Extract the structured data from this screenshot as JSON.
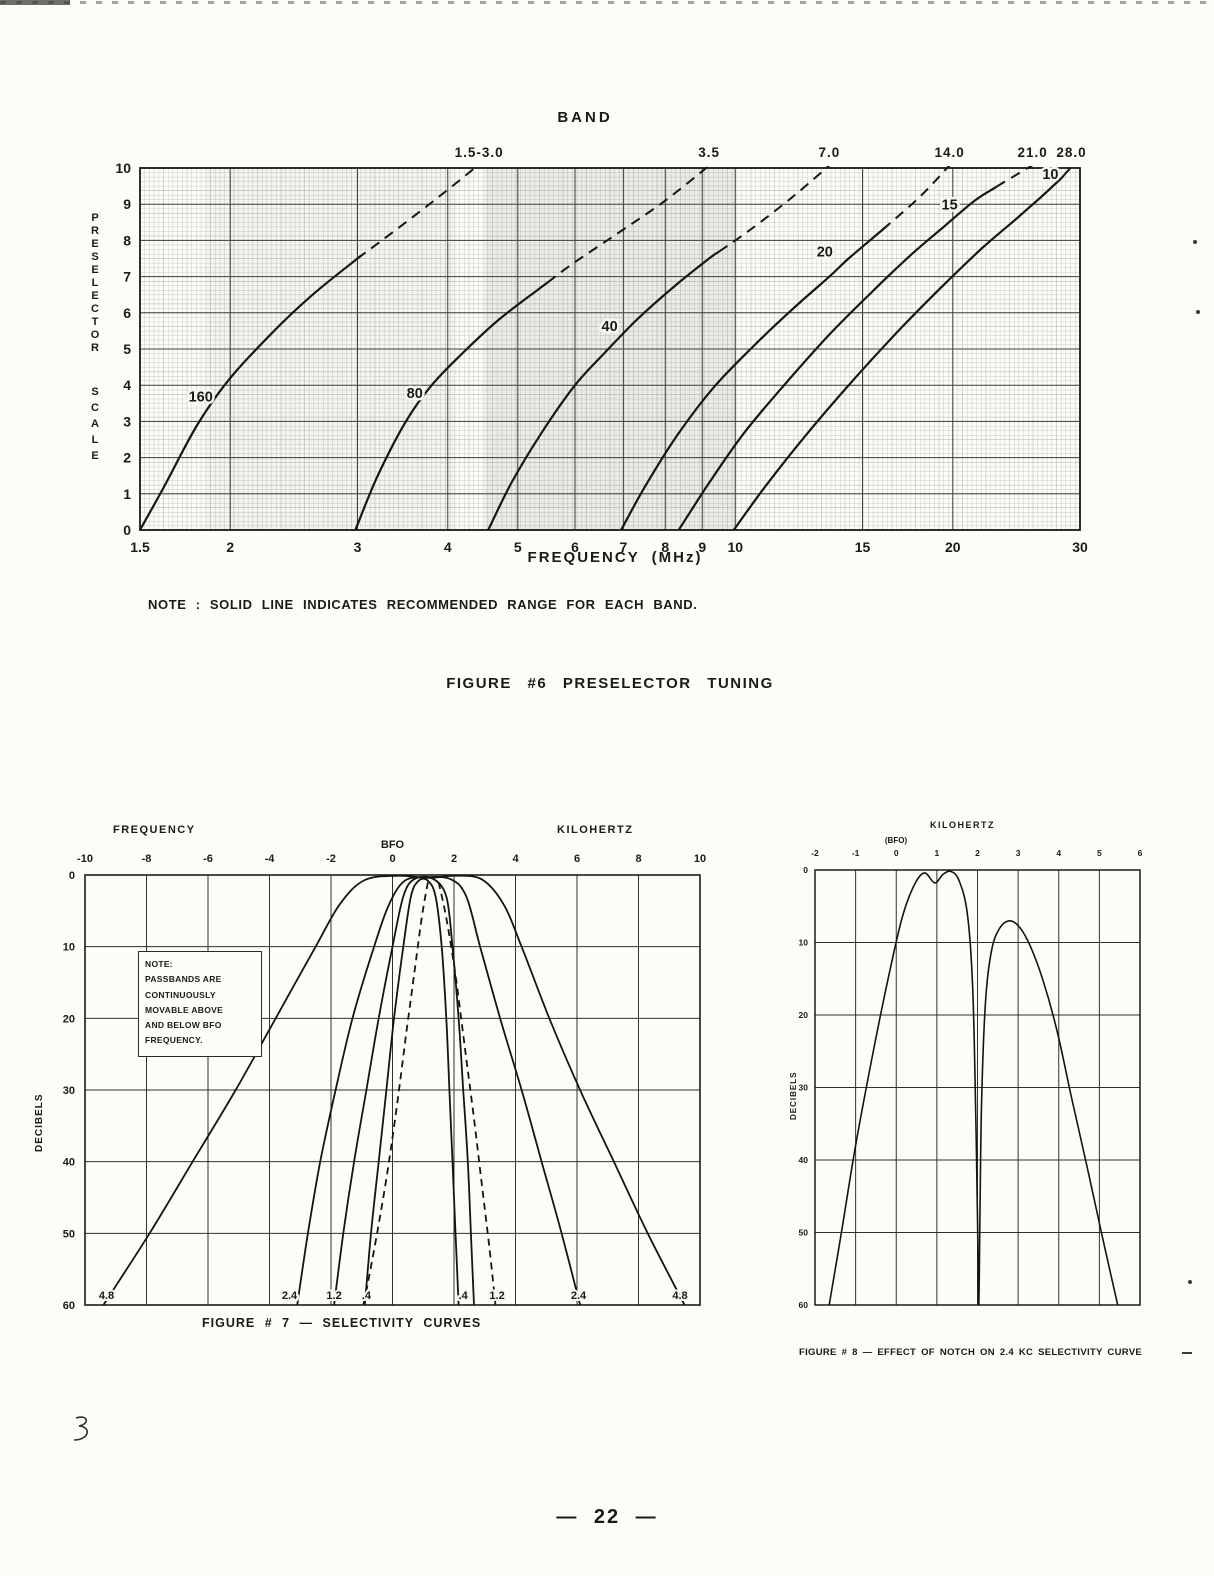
{
  "page": {
    "footer": "— 22 —"
  },
  "chart_data": [
    {
      "id": "figure-6-preselector-tuning",
      "type": "line",
      "caption": "FIGURE #6 PRESELECTOR TUNING",
      "top_axis_title": "BAND",
      "xlabel": "FREQUENCY (MHz)",
      "ylabel": "PRESELECTOR SCALE",
      "ylabel_words": [
        "PRESELECTOR",
        "SCALE"
      ],
      "note": "NOTE : SOLID LINE INDICATES RECOMMENDED RANGE FOR EACH BAND.",
      "x_scale": "log",
      "xlim": [
        1.5,
        30
      ],
      "ylim": [
        0,
        10
      ],
      "x_ticks": [
        1.5,
        2,
        3,
        4,
        5,
        6,
        7,
        8,
        9,
        10,
        15,
        20,
        30
      ],
      "x_tick_labels": [
        "1.5",
        "2",
        "3",
        "4",
        "5",
        "6",
        "7",
        "8",
        "9",
        "10",
        "15",
        "20",
        "30"
      ],
      "y_ticks": [
        0,
        1,
        2,
        3,
        4,
        5,
        6,
        7,
        8,
        9,
        10
      ],
      "grid": "fine log graph paper",
      "top_labels": [
        {
          "text": "1.5-3.0",
          "freq": 4.42
        },
        {
          "text": "3.5",
          "freq": 9.2
        },
        {
          "text": "7.0",
          "freq": 13.5
        },
        {
          "text": "14.0",
          "freq": 19.8
        },
        {
          "text": "21.0",
          "freq": 25.8
        },
        {
          "text": "28.0",
          "freq": 29.2
        }
      ],
      "series": [
        {
          "name": "160",
          "band": "1.5-3.0",
          "dash_from": 3.0,
          "label_pos": [
            1.82,
            3.55
          ],
          "points": [
            [
              1.5,
              0
            ],
            [
              1.62,
              1.2
            ],
            [
              1.8,
              2.9
            ],
            [
              2.0,
              4.2
            ],
            [
              2.3,
              5.5
            ],
            [
              2.6,
              6.5
            ],
            [
              3.0,
              7.5
            ],
            [
              3.5,
              8.5
            ],
            [
              4.0,
              9.4
            ],
            [
              4.42,
              10.1
            ]
          ]
        },
        {
          "name": "80",
          "band": "3.5",
          "dash_from": 5.5,
          "label_pos": [
            3.6,
            3.65
          ],
          "points": [
            [
              2.98,
              0
            ],
            [
              3.2,
              1.5
            ],
            [
              3.5,
              3.0
            ],
            [
              3.8,
              4.0
            ],
            [
              4.2,
              4.9
            ],
            [
              4.7,
              5.8
            ],
            [
              5.3,
              6.6
            ],
            [
              6.0,
              7.4
            ],
            [
              7.0,
              8.3
            ],
            [
              8.0,
              9.1
            ],
            [
              9.25,
              10.1
            ]
          ]
        },
        {
          "name": "40",
          "band": "7.0",
          "dash_from": 9.5,
          "label_pos": [
            6.7,
            5.5
          ],
          "points": [
            [
              4.55,
              0
            ],
            [
              4.9,
              1.3
            ],
            [
              5.4,
              2.7
            ],
            [
              6.0,
              4.0
            ],
            [
              6.6,
              4.9
            ],
            [
              7.3,
              5.8
            ],
            [
              8.2,
              6.7
            ],
            [
              9.2,
              7.5
            ],
            [
              10.5,
              8.3
            ],
            [
              12.0,
              9.2
            ],
            [
              13.55,
              10.1
            ]
          ]
        },
        {
          "name": "20",
          "band": "14.0",
          "dash_from": 16,
          "label_pos": [
            13.3,
            7.55
          ],
          "points": [
            [
              6.95,
              0
            ],
            [
              7.5,
              1.2
            ],
            [
              8.3,
              2.6
            ],
            [
              9.3,
              3.9
            ],
            [
              10.5,
              5.0
            ],
            [
              12.0,
              6.1
            ],
            [
              13.5,
              7.0
            ],
            [
              14.35,
              7.5
            ],
            [
              16.0,
              8.3
            ],
            [
              18.0,
              9.2
            ],
            [
              19.85,
              10.1
            ]
          ]
        },
        {
          "name": "15",
          "band": "21.0",
          "dash_from": 23,
          "label_pos": [
            19.8,
            8.85
          ],
          "points": [
            [
              8.35,
              0
            ],
            [
              9.2,
              1.3
            ],
            [
              10.3,
              2.7
            ],
            [
              11.8,
              4.1
            ],
            [
              13.5,
              5.4
            ],
            [
              15.5,
              6.6
            ],
            [
              17.5,
              7.6
            ],
            [
              19.5,
              8.4
            ],
            [
              21.45,
              9.1
            ],
            [
              23.5,
              9.6
            ],
            [
              25.9,
              10.1
            ]
          ]
        },
        {
          "name": "10",
          "band": "28.0",
          "dash_from": 28.5,
          "label_pos": [
            27.3,
            9.7
          ],
          "points": [
            [
              9.95,
              0
            ],
            [
              11.0,
              1.2
            ],
            [
              12.5,
              2.6
            ],
            [
              14.5,
              4.1
            ],
            [
              17.0,
              5.6
            ],
            [
              19.5,
              6.8
            ],
            [
              22.0,
              7.8
            ],
            [
              24.5,
              8.6
            ],
            [
              26.5,
              9.2
            ],
            [
              28.2,
              9.7
            ],
            [
              29.4,
              10.1
            ]
          ]
        }
      ]
    },
    {
      "id": "figure-7-selectivity-curves",
      "type": "line",
      "caption": "FIGURE # 7 — SELECTIVITY CURVES",
      "top_left_label": "FREQUENCY",
      "top_right_label": "KILOHERTZ",
      "bfo_label": "BFO",
      "ylabel": "DECIBELS",
      "xlim": [
        -10,
        10
      ],
      "ylim": [
        0,
        60
      ],
      "x_ticks": [
        -10,
        -8,
        -6,
        -4,
        -2,
        0,
        2,
        4,
        6,
        8,
        10
      ],
      "x_tick_labels": [
        "-10",
        "-8",
        "-6",
        "-4",
        "-2",
        "0",
        "2",
        "4",
        "6",
        "8",
        "10"
      ],
      "y_ticks": [
        0,
        10,
        20,
        30,
        40,
        50,
        60
      ],
      "note_box": "NOTE:\nPASSBANDS ARE\nCONTINUOUSLY\nMOVABLE ABOVE\nAND BELOW BFO\nFREQUENCY.",
      "bandwidth_edge_labels": [
        {
          "text": "4.8",
          "x": -9.3
        },
        {
          "text": "2.4",
          "x": -3.35
        },
        {
          "text": "1.2",
          "x": -1.9
        },
        {
          "text": ".4",
          "x": -0.85
        },
        {
          "text": ".4",
          "x": 2.3
        },
        {
          "text": "1.2",
          "x": 3.4
        },
        {
          "text": "2.4",
          "x": 6.05
        },
        {
          "text": "4.8",
          "x": 9.35
        }
      ],
      "series": [
        {
          "name": "4.8",
          "style": "solid",
          "points": [
            [
              -9.4,
              60
            ],
            [
              -7.9,
              50
            ],
            [
              -6.5,
              40
            ],
            [
              -5.1,
              30
            ],
            [
              -3.8,
              20
            ],
            [
              -2.5,
              10
            ],
            [
              -1.7,
              4
            ],
            [
              -0.9,
              0.7
            ],
            [
              0.2,
              0.1
            ],
            [
              1.2,
              0.4
            ],
            [
              2.0,
              0.1
            ],
            [
              2.9,
              0.6
            ],
            [
              3.6,
              4
            ],
            [
              4.2,
              10
            ],
            [
              5.1,
              20
            ],
            [
              6.1,
              30
            ],
            [
              7.2,
              40
            ],
            [
              8.3,
              50
            ],
            [
              9.5,
              60
            ]
          ]
        },
        {
          "name": "2.4",
          "style": "solid",
          "points": [
            [
              -3.1,
              60
            ],
            [
              -2.75,
              50
            ],
            [
              -2.35,
              40
            ],
            [
              -1.85,
              30
            ],
            [
              -1.3,
              20
            ],
            [
              -0.6,
              10
            ],
            [
              -0.1,
              4
            ],
            [
              0.4,
              0.8
            ],
            [
              1.1,
              0.3
            ],
            [
              1.9,
              0.6
            ],
            [
              2.4,
              3
            ],
            [
              2.85,
              10
            ],
            [
              3.5,
              20
            ],
            [
              4.2,
              30
            ],
            [
              4.85,
              40
            ],
            [
              5.5,
              50
            ],
            [
              6.1,
              60
            ]
          ]
        },
        {
          "name": "1.2",
          "style": "solid",
          "points": [
            [
              -1.9,
              60
            ],
            [
              -1.6,
              50
            ],
            [
              -1.25,
              40
            ],
            [
              -0.85,
              30
            ],
            [
              -0.45,
              20
            ],
            [
              0.0,
              10
            ],
            [
              0.35,
              3
            ],
            [
              0.7,
              0.6
            ],
            [
              1.3,
              0.5
            ],
            [
              1.75,
              3
            ],
            [
              1.95,
              10
            ],
            [
              2.15,
              20
            ],
            [
              2.3,
              30
            ],
            [
              2.45,
              40
            ],
            [
              2.55,
              50
            ],
            [
              2.65,
              60
            ]
          ]
        },
        {
          "name": "0.4",
          "style": "solid",
          "points": [
            [
              -0.9,
              60
            ],
            [
              -0.7,
              50
            ],
            [
              -0.45,
              40
            ],
            [
              -0.2,
              30
            ],
            [
              0.05,
              20
            ],
            [
              0.35,
              10
            ],
            [
              0.6,
              3
            ],
            [
              0.85,
              0.8
            ],
            [
              1.15,
              0.8
            ],
            [
              1.4,
              3
            ],
            [
              1.6,
              10
            ],
            [
              1.75,
              20
            ],
            [
              1.85,
              30
            ],
            [
              1.95,
              40
            ],
            [
              2.05,
              50
            ],
            [
              2.15,
              60
            ]
          ]
        },
        {
          "name": "movable-passband-left",
          "style": "dashed",
          "points": [
            [
              1.15,
              1
            ],
            [
              0.95,
              6
            ],
            [
              0.7,
              14
            ],
            [
              0.45,
              22
            ],
            [
              0.15,
              32
            ],
            [
              -0.15,
              41
            ],
            [
              -0.5,
              50
            ],
            [
              -0.85,
              58
            ],
            [
              -0.95,
              60
            ]
          ]
        },
        {
          "name": "movable-passband-right",
          "style": "dashed",
          "points": [
            [
              1.5,
              1
            ],
            [
              1.75,
              6
            ],
            [
              2.05,
              14
            ],
            [
              2.35,
              24
            ],
            [
              2.65,
              34
            ],
            [
              2.9,
              43
            ],
            [
              3.15,
              52
            ],
            [
              3.35,
              60
            ]
          ]
        }
      ]
    },
    {
      "id": "figure-8-notch-effect",
      "type": "line",
      "caption": "FIGURE # 8 — EFFECT OF NOTCH ON 2.4 KC SELECTIVITY CURVE",
      "top_label": "KILOHERTZ",
      "bfo_label": "(BFO)",
      "ylabel": "DECIBELS",
      "xlim": [
        -2,
        6
      ],
      "ylim": [
        0,
        60
      ],
      "x_ticks": [
        -2,
        -1,
        0,
        1,
        2,
        3,
        4,
        5,
        6
      ],
      "x_tick_labels": [
        "-2",
        "-1",
        "0",
        "1",
        "2",
        "3",
        "4",
        "5",
        "6"
      ],
      "y_ticks": [
        0,
        10,
        20,
        30,
        40,
        50,
        60
      ],
      "series": [
        {
          "name": "2.4-kc-with-notch",
          "style": "solid",
          "points": [
            [
              -1.65,
              60
            ],
            [
              -1.35,
              50
            ],
            [
              -1.0,
              38
            ],
            [
              -0.6,
              26
            ],
            [
              -0.2,
              15
            ],
            [
              0.15,
              6.5
            ],
            [
              0.45,
              2
            ],
            [
              0.7,
              0.4
            ],
            [
              0.95,
              1.8
            ],
            [
              1.15,
              0.6
            ],
            [
              1.35,
              0.2
            ],
            [
              1.55,
              1.5
            ],
            [
              1.75,
              6
            ],
            [
              1.88,
              16
            ],
            [
              1.95,
              32
            ],
            [
              2.0,
              48
            ],
            [
              2.03,
              60
            ],
            [
              2.06,
              48
            ],
            [
              2.1,
              32
            ],
            [
              2.2,
              18
            ],
            [
              2.35,
              11
            ],
            [
              2.55,
              8
            ],
            [
              2.8,
              7
            ],
            [
              3.05,
              8
            ],
            [
              3.3,
              10.5
            ],
            [
              3.6,
              15
            ],
            [
              3.95,
              22
            ],
            [
              4.3,
              31
            ],
            [
              4.7,
              41
            ],
            [
              5.05,
              50
            ],
            [
              5.45,
              60
            ]
          ]
        }
      ]
    }
  ]
}
